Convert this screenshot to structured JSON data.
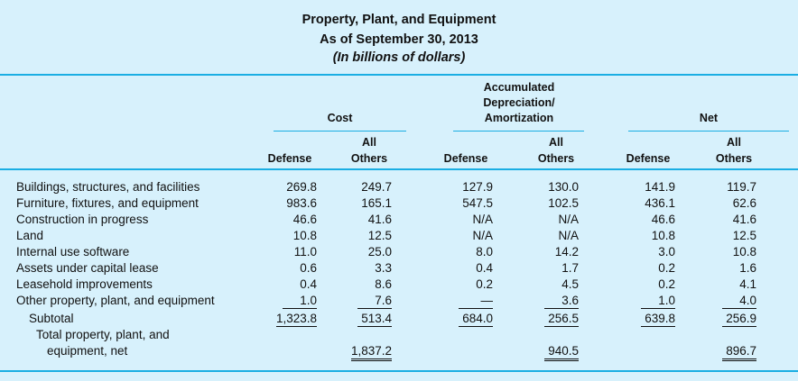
{
  "title": "Property, Plant, and Equipment",
  "subtitle": "As of September 30, 2013",
  "units": "(In billions of dollars)",
  "groups": {
    "cost": "Cost",
    "accum": [
      "Accumulated",
      "Depreciation/",
      "Amortization"
    ],
    "net": "Net"
  },
  "columns": {
    "defense": "Defense",
    "all": "All",
    "others": "Others"
  },
  "rows": [
    {
      "label": "Buildings, structures, and facilities",
      "values": [
        "269.8",
        "249.7",
        "127.9",
        "130.0",
        "141.9",
        "119.7"
      ]
    },
    {
      "label": "Furniture, fixtures, and equipment",
      "values": [
        "983.6",
        "165.1",
        "547.5",
        "102.5",
        "436.1",
        "62.6"
      ]
    },
    {
      "label": "Construction in progress",
      "values": [
        "46.6",
        "41.6",
        "N/A",
        "N/A",
        "46.6",
        "41.6"
      ]
    },
    {
      "label": "Land",
      "values": [
        "10.8",
        "12.5",
        "N/A",
        "N/A",
        "10.8",
        "12.5"
      ]
    },
    {
      "label": "Internal use software",
      "values": [
        "11.0",
        "25.0",
        "8.0",
        "14.2",
        "3.0",
        "10.8"
      ]
    },
    {
      "label": "Assets under capital lease",
      "values": [
        "0.6",
        "3.3",
        "0.4",
        "1.7",
        "0.2",
        "1.6"
      ]
    },
    {
      "label": "Leasehold improvements",
      "values": [
        "0.4",
        "8.6",
        "0.2",
        "4.5",
        "0.2",
        "4.1"
      ]
    },
    {
      "label": "Other property, plant, and equipment",
      "values": [
        "1.0",
        "7.6",
        "—",
        "3.6",
        "1.0",
        "4.0"
      ]
    }
  ],
  "subtotal": {
    "label": "Subtotal",
    "values": [
      "1,323.8",
      "513.4",
      "684.0",
      "256.5",
      "639.8",
      "256.9"
    ]
  },
  "total": {
    "label_1": "Total property, plant, and",
    "label_2": "equipment, net",
    "values": [
      "1,837.2",
      "940.5",
      "896.7"
    ]
  }
}
